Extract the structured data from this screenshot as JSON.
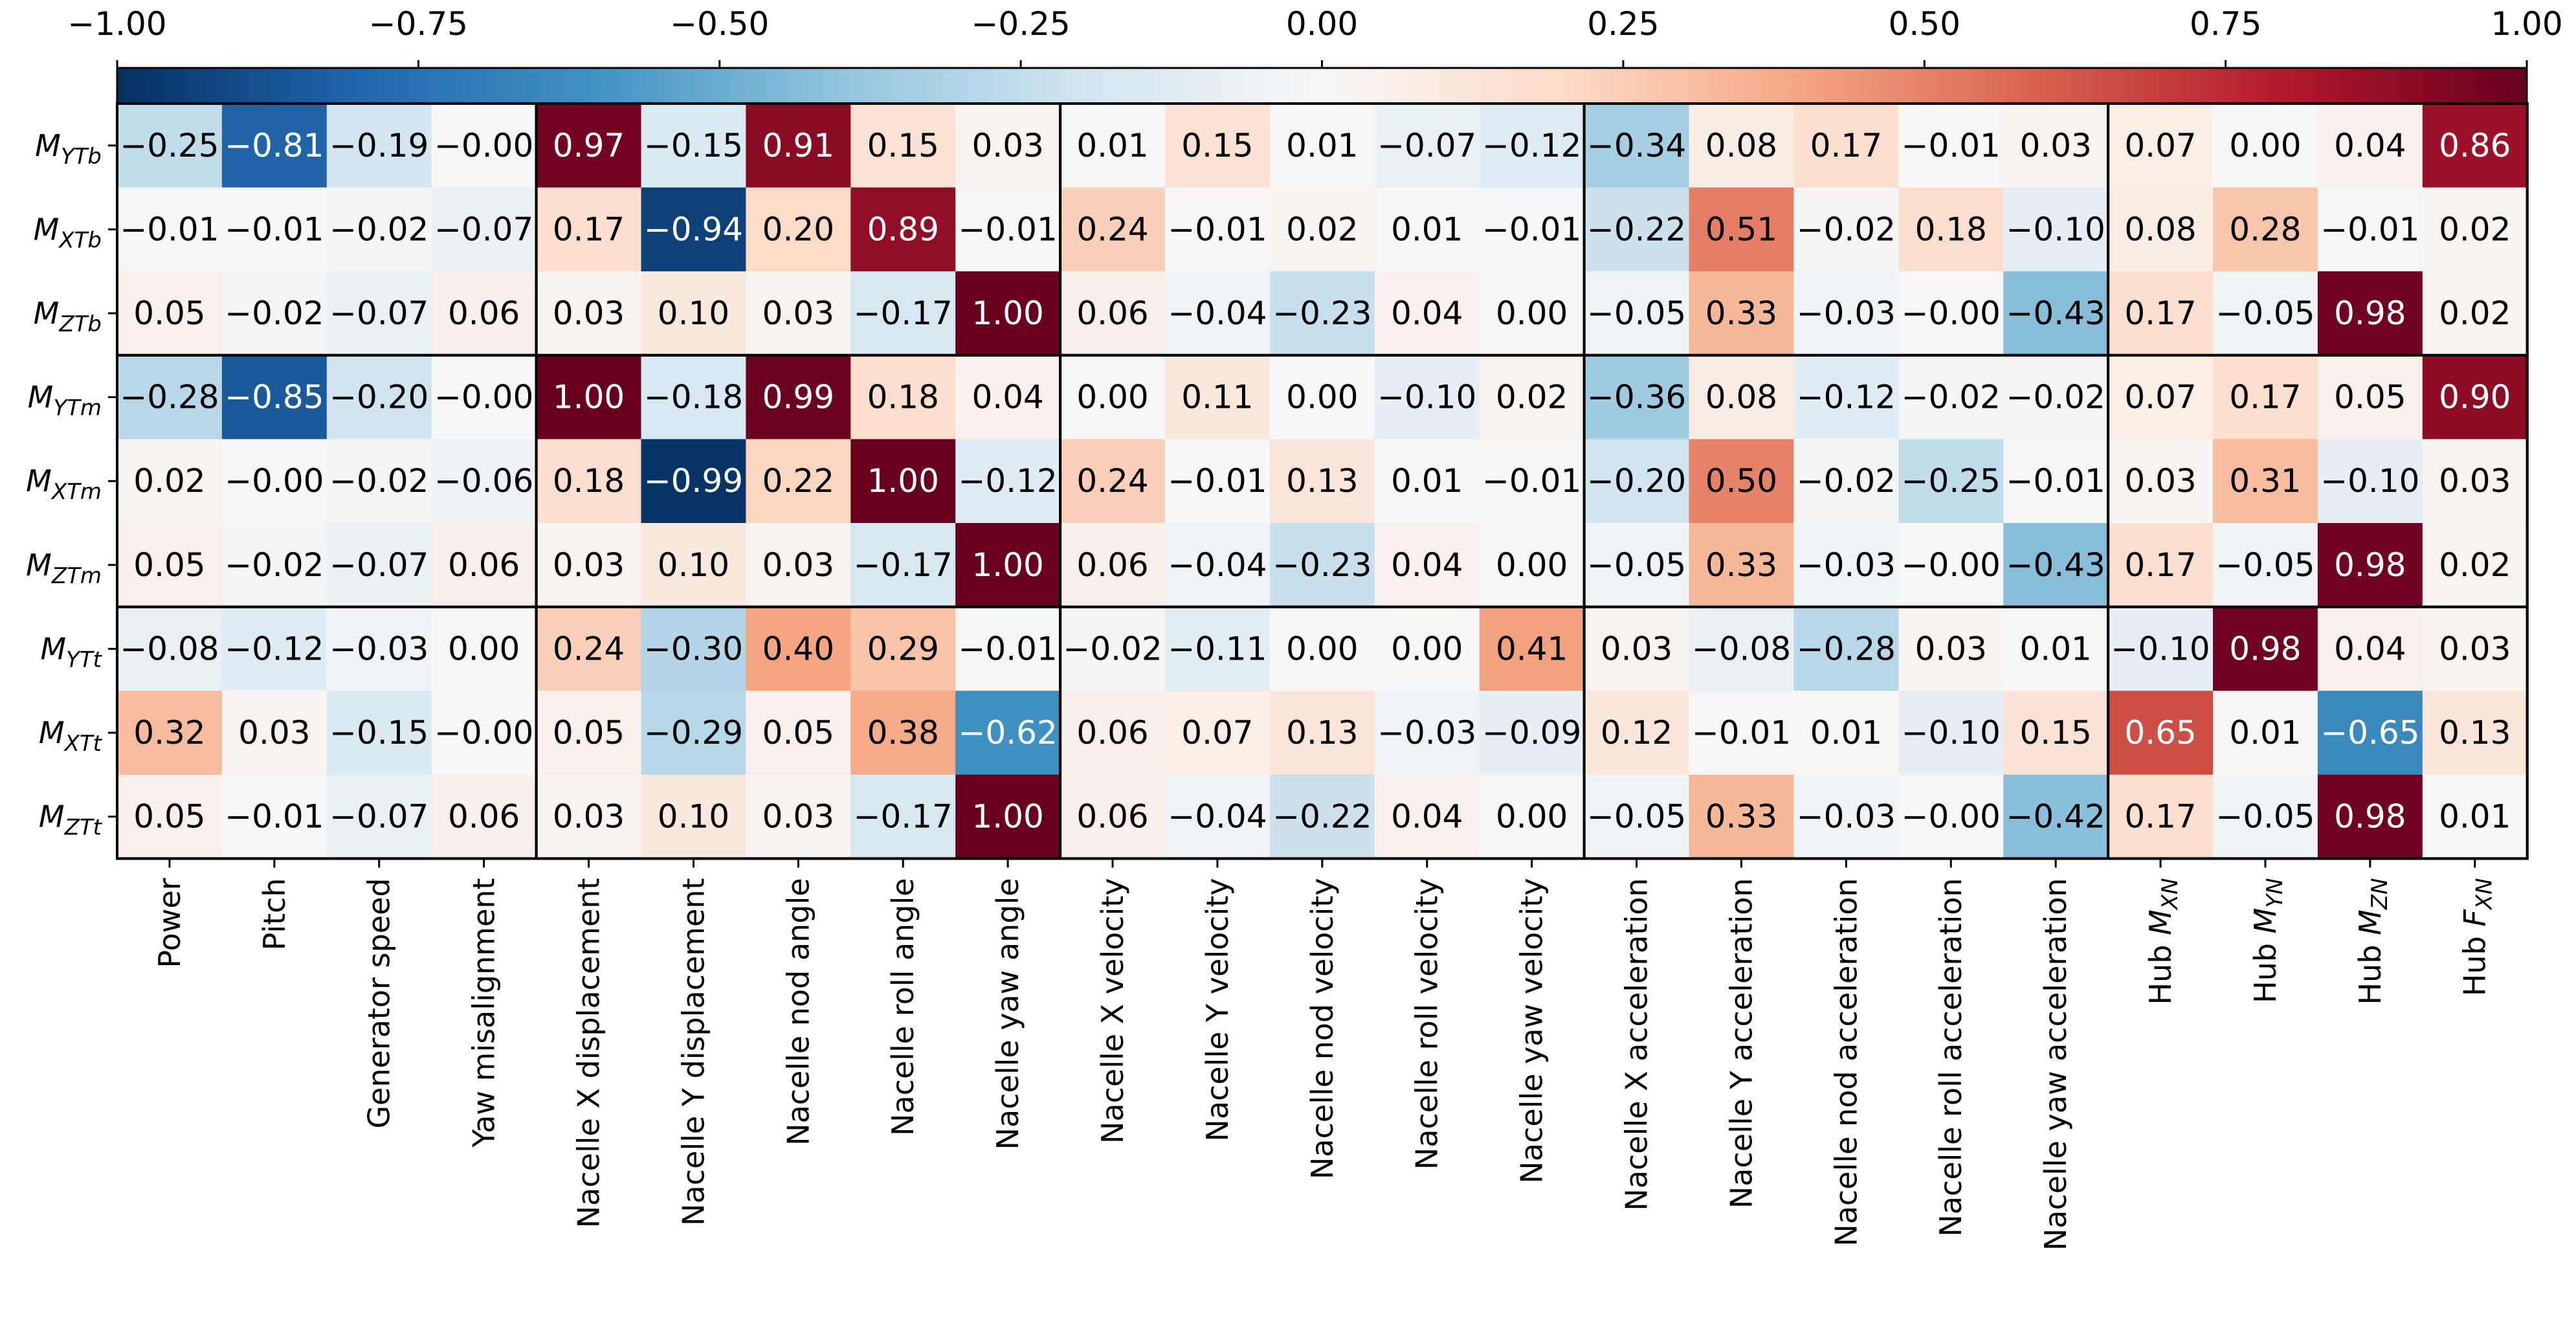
{
  "chart_data": {
    "type": "heatmap",
    "colormap": "RdBu_r",
    "vmin": -1.0,
    "vmax": 1.0,
    "colorbar": {
      "location": "top",
      "ticks": [
        -1.0,
        -0.75,
        -0.5,
        -0.25,
        0.0,
        0.25,
        0.5,
        0.75,
        1.0
      ],
      "tick_labels": [
        "−1.00",
        "−0.75",
        "−0.50",
        "−0.25",
        "0.00",
        "0.25",
        "0.50",
        "0.75",
        "1.00"
      ]
    },
    "rows": [
      {
        "main": "M",
        "sub": "YTb"
      },
      {
        "main": "M",
        "sub": "XTb"
      },
      {
        "main": "M",
        "sub": "ZTb"
      },
      {
        "main": "M",
        "sub": "YTm"
      },
      {
        "main": "M",
        "sub": "XTm"
      },
      {
        "main": "M",
        "sub": "ZTm"
      },
      {
        "main": "M",
        "sub": "YTt"
      },
      {
        "main": "M",
        "sub": "XTt"
      },
      {
        "main": "M",
        "sub": "ZTt"
      }
    ],
    "columns": [
      {
        "text": "Power"
      },
      {
        "text": "Pitch"
      },
      {
        "text": "Generator speed"
      },
      {
        "text": "Yaw misalignment"
      },
      {
        "text": "Nacelle X displacement"
      },
      {
        "text": "Nacelle Y displacement"
      },
      {
        "text": "Nacelle nod angle"
      },
      {
        "text": "Nacelle roll angle"
      },
      {
        "text": "Nacelle yaw angle"
      },
      {
        "text": "Nacelle X velocity"
      },
      {
        "text": "Nacelle Y velocity"
      },
      {
        "text": "Nacelle nod velocity"
      },
      {
        "text": "Nacelle roll velocity"
      },
      {
        "text": "Nacelle yaw velocity"
      },
      {
        "text": "Nacelle X acceleration"
      },
      {
        "text": "Nacelle Y acceleration"
      },
      {
        "text": "Nacelle nod acceleration"
      },
      {
        "text": "Nacelle roll acceleration"
      },
      {
        "text": "Nacelle yaw acceleration"
      },
      {
        "text": "Hub ",
        "italic": "M",
        "sub": "XN"
      },
      {
        "text": "Hub ",
        "italic": "M",
        "sub": "YN"
      },
      {
        "text": "Hub ",
        "italic": "M",
        "sub": "ZN"
      },
      {
        "text": "Hub ",
        "italic": "F",
        "sub": "XN"
      }
    ],
    "values": [
      [
        -0.25,
        -0.81,
        -0.19,
        -0.0,
        0.97,
        -0.15,
        0.91,
        0.15,
        0.03,
        0.01,
        0.15,
        0.01,
        -0.07,
        -0.12,
        -0.34,
        0.08,
        0.17,
        -0.01,
        0.03,
        0.07,
        0.0,
        0.04,
        0.86
      ],
      [
        -0.01,
        -0.01,
        -0.02,
        -0.07,
        0.17,
        -0.94,
        0.2,
        0.89,
        -0.01,
        0.24,
        -0.01,
        0.02,
        0.01,
        -0.01,
        -0.22,
        0.51,
        -0.02,
        0.18,
        -0.1,
        0.08,
        0.28,
        -0.01,
        0.02
      ],
      [
        0.05,
        -0.02,
        -0.07,
        0.06,
        0.03,
        0.1,
        0.03,
        -0.17,
        1.0,
        0.06,
        -0.04,
        -0.23,
        0.04,
        0.0,
        -0.05,
        0.33,
        -0.03,
        -0.0,
        -0.43,
        0.17,
        -0.05,
        0.98,
        0.02
      ],
      [
        -0.28,
        -0.85,
        -0.2,
        -0.0,
        1.0,
        -0.18,
        0.99,
        0.18,
        0.04,
        0.0,
        0.11,
        0.0,
        -0.1,
        0.02,
        -0.36,
        0.08,
        -0.12,
        -0.02,
        -0.02,
        0.07,
        0.17,
        0.05,
        0.9
      ],
      [
        0.02,
        -0.0,
        -0.02,
        -0.06,
        0.18,
        -0.99,
        0.22,
        1.0,
        -0.12,
        0.24,
        -0.01,
        0.13,
        0.01,
        -0.01,
        -0.2,
        0.5,
        -0.02,
        -0.25,
        -0.01,
        0.03,
        0.31,
        -0.1,
        0.03
      ],
      [
        0.05,
        -0.02,
        -0.07,
        0.06,
        0.03,
        0.1,
        0.03,
        -0.17,
        1.0,
        0.06,
        -0.04,
        -0.23,
        0.04,
        0.0,
        -0.05,
        0.33,
        -0.03,
        -0.0,
        -0.43,
        0.17,
        -0.05,
        0.98,
        0.02
      ],
      [
        -0.08,
        -0.12,
        -0.03,
        0.0,
        0.24,
        -0.3,
        0.4,
        0.29,
        -0.01,
        -0.02,
        -0.11,
        0.0,
        0.0,
        0.41,
        0.03,
        -0.08,
        -0.28,
        0.03,
        0.01,
        -0.1,
        0.98,
        0.04,
        0.03
      ],
      [
        0.32,
        0.03,
        -0.15,
        -0.0,
        0.05,
        -0.29,
        0.05,
        0.38,
        -0.62,
        0.06,
        0.07,
        0.13,
        -0.03,
        -0.09,
        0.12,
        -0.01,
        0.01,
        -0.1,
        0.15,
        0.65,
        0.01,
        -0.65,
        0.13
      ],
      [
        0.05,
        -0.01,
        -0.07,
        0.06,
        0.03,
        0.1,
        0.03,
        -0.17,
        1.0,
        0.06,
        -0.04,
        -0.22,
        0.04,
        0.0,
        -0.05,
        0.33,
        -0.03,
        -0.0,
        -0.42,
        0.17,
        -0.05,
        0.98,
        0.01
      ]
    ],
    "cell_labels": [
      [
        "−0.25",
        "−0.81",
        "−0.19",
        "−0.00",
        "0.97",
        "−0.15",
        "0.91",
        "0.15",
        "0.03",
        "0.01",
        "0.15",
        "0.01",
        "−0.07",
        "−0.12",
        "−0.34",
        "0.08",
        "0.17",
        "−0.01",
        "0.03",
        "0.07",
        "0.00",
        "0.04",
        "0.86"
      ],
      [
        "−0.01",
        "−0.01",
        "−0.02",
        "−0.07",
        "0.17",
        "−0.94",
        "0.20",
        "0.89",
        "−0.01",
        "0.24",
        "−0.01",
        "0.02",
        "0.01",
        "−0.01",
        "−0.22",
        "0.51",
        "−0.02",
        "0.18",
        "−0.10",
        "0.08",
        "0.28",
        "−0.01",
        "0.02"
      ],
      [
        "0.05",
        "−0.02",
        "−0.07",
        "0.06",
        "0.03",
        "0.10",
        "0.03",
        "−0.17",
        "1.00",
        "0.06",
        "−0.04",
        "−0.23",
        "0.04",
        "0.00",
        "−0.05",
        "0.33",
        "−0.03",
        "−0.00",
        "−0.43",
        "0.17",
        "−0.05",
        "0.98",
        "0.02"
      ],
      [
        "−0.28",
        "−0.85",
        "−0.20",
        "−0.00",
        "1.00",
        "−0.18",
        "0.99",
        "0.18",
        "0.04",
        "0.00",
        "0.11",
        "0.00",
        "−0.10",
        "0.02",
        "−0.36",
        "0.08",
        "−0.12",
        "−0.02",
        "−0.02",
        "0.07",
        "0.17",
        "0.05",
        "0.90"
      ],
      [
        "0.02",
        "−0.00",
        "−0.02",
        "−0.06",
        "0.18",
        "−0.99",
        "0.22",
        "1.00",
        "−0.12",
        "0.24",
        "−0.01",
        "0.13",
        "0.01",
        "−0.01",
        "−0.20",
        "0.50",
        "−0.02",
        "−0.25",
        "−0.01",
        "0.03",
        "0.31",
        "−0.10",
        "0.03"
      ],
      [
        "0.05",
        "−0.02",
        "−0.07",
        "0.06",
        "0.03",
        "0.10",
        "0.03",
        "−0.17",
        "1.00",
        "0.06",
        "−0.04",
        "−0.23",
        "0.04",
        "0.00",
        "−0.05",
        "0.33",
        "−0.03",
        "−0.00",
        "−0.43",
        "0.17",
        "−0.05",
        "0.98",
        "0.02"
      ],
      [
        "−0.08",
        "−0.12",
        "−0.03",
        "0.00",
        "0.24",
        "−0.30",
        "0.40",
        "0.29",
        "−0.01",
        "−0.02",
        "−0.11",
        "0.00",
        "0.00",
        "0.41",
        "0.03",
        "−0.08",
        "−0.28",
        "0.03",
        "0.01",
        "−0.10",
        "0.98",
        "0.04",
        "0.03"
      ],
      [
        "0.32",
        "0.03",
        "−0.15",
        "−0.00",
        "0.05",
        "−0.29",
        "0.05",
        "0.38",
        "−0.62",
        "0.06",
        "0.07",
        "0.13",
        "−0.03",
        "−0.09",
        "0.12",
        "−0.01",
        "0.01",
        "−0.10",
        "0.15",
        "0.65",
        "0.01",
        "−0.65",
        "0.13"
      ],
      [
        "0.05",
        "−0.01",
        "−0.07",
        "0.06",
        "0.03",
        "0.10",
        "0.03",
        "−0.17",
        "1.00",
        "0.06",
        "−0.04",
        "−0.22",
        "0.04",
        "0.00",
        "−0.05",
        "0.33",
        "−0.03",
        "−0.00",
        "−0.42",
        "0.17",
        "−0.05",
        "0.98",
        "0.01"
      ]
    ],
    "row_groups": [
      [
        0,
        2
      ],
      [
        3,
        5
      ],
      [
        6,
        8
      ]
    ],
    "column_groups": [
      [
        0,
        3
      ],
      [
        4,
        8
      ],
      [
        9,
        13
      ],
      [
        14,
        18
      ],
      [
        19,
        22
      ]
    ]
  }
}
